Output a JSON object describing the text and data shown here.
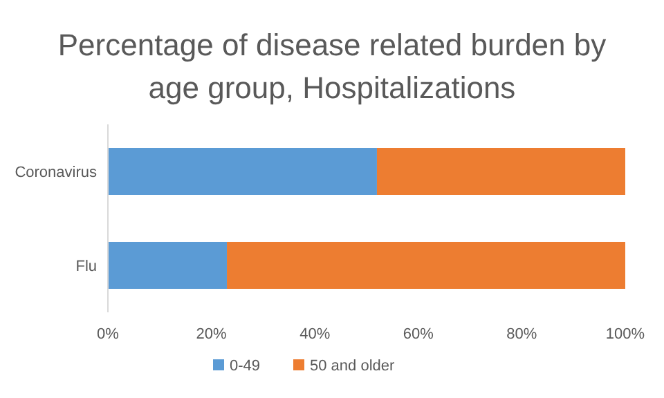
{
  "chart_data": {
    "type": "bar",
    "orientation": "horizontal",
    "stacked": true,
    "title": "Percentage of disease related burden by age group, Hospitalizations",
    "categories": [
      "Coronavirus",
      "Flu"
    ],
    "series": [
      {
        "name": "0-49",
        "color": "#5b9bd5",
        "values": [
          52,
          23
        ]
      },
      {
        "name": "50 and older",
        "color": "#ed7d31",
        "values": [
          48,
          77
        ]
      }
    ],
    "xlim": [
      0,
      100
    ],
    "xticks": [
      {
        "value": 0,
        "label": "0%"
      },
      {
        "value": 20,
        "label": "20%"
      },
      {
        "value": 40,
        "label": "40%"
      },
      {
        "value": 60,
        "label": "60%"
      },
      {
        "value": 80,
        "label": "80%"
      },
      {
        "value": 100,
        "label": "100%"
      }
    ],
    "grid": false,
    "legend": "bottom"
  }
}
